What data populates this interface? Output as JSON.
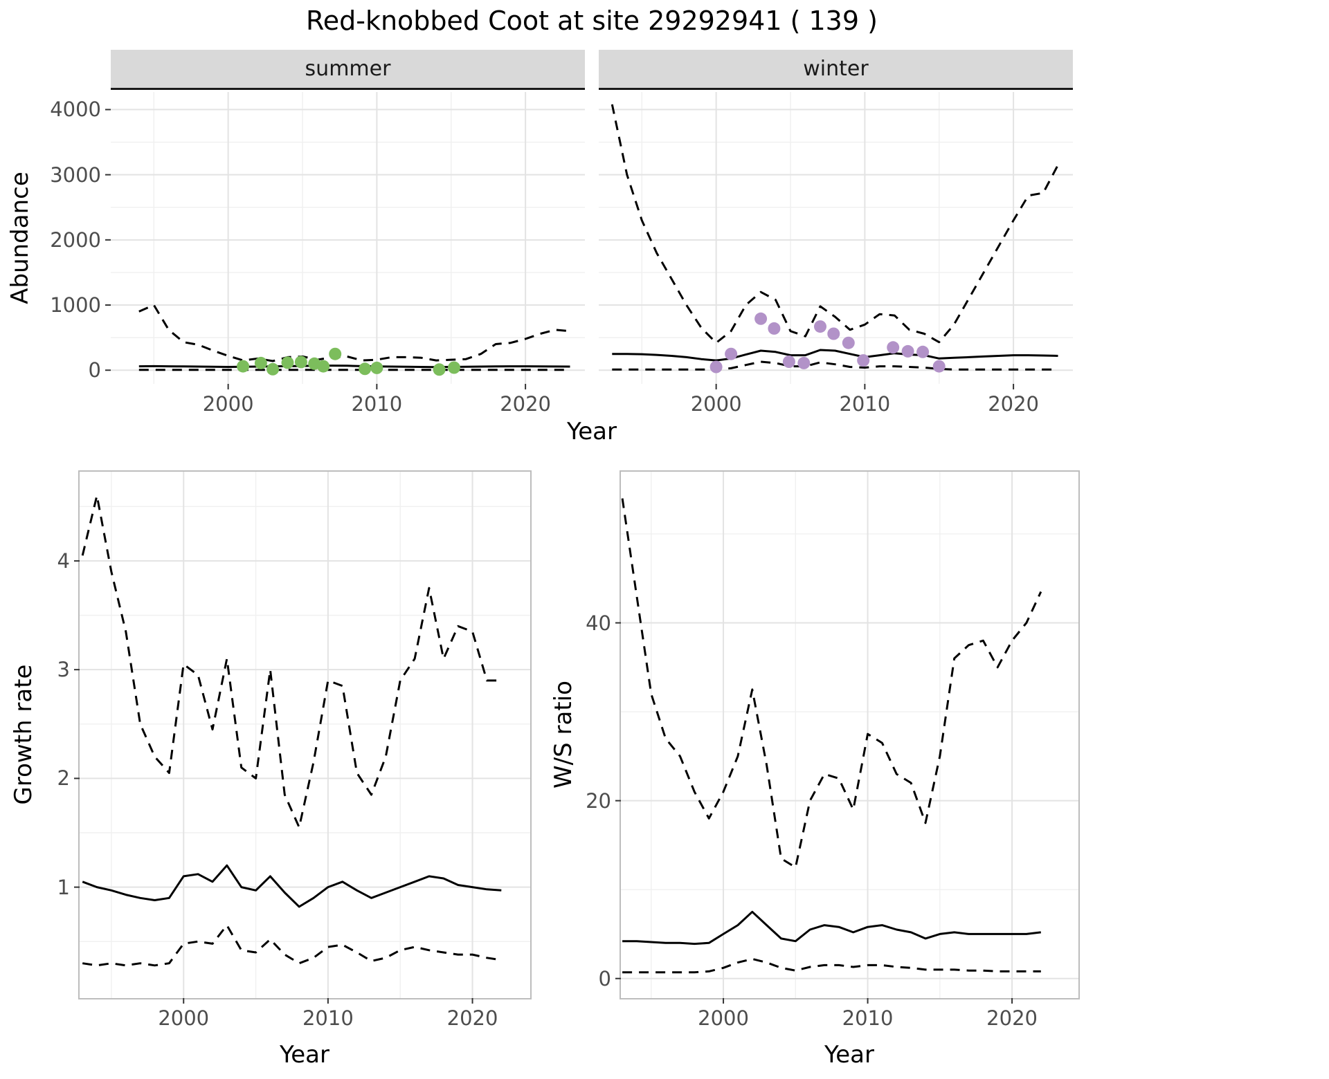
{
  "title": "Red-knobbed Coot at site 29292941 ( 139 )",
  "style": {
    "grid_major": "#e3e3e3",
    "grid_minor": "#f0f0f0",
    "line": "#000000",
    "tick": "#333333",
    "strip_bg": "#d9d9d9",
    "strip_border": "#1a1a1a",
    "panel_border": "#bdbdbd",
    "summer_point": "#7cbd5c",
    "winter_point": "#b292c8"
  },
  "chart_data": [
    {
      "id": "abundance-summer",
      "type": "line",
      "facet_label": "summer",
      "xlabel": "Year",
      "ylabel": "Abundance",
      "xlim": [
        1992.1,
        2024.0
      ],
      "ylim": [
        -210,
        4270
      ],
      "xticks": [
        2000,
        2010,
        2020
      ],
      "yticks": [
        0,
        1000,
        2000,
        3000,
        4000
      ],
      "xticks_minor": [
        1995,
        2005,
        2015
      ],
      "yticks_minor": [
        500,
        1500,
        2500,
        3500
      ],
      "series": [
        {
          "name": "upper-ci",
          "style": "dashed",
          "x": [
            1994,
            1995,
            1996,
            1997,
            1998,
            1999,
            2000,
            2001,
            2002,
            2003,
            2004,
            2005,
            2006,
            2007,
            2008,
            2009,
            2010,
            2011,
            2012,
            2013,
            2014,
            2015,
            2016,
            2017,
            2018,
            2019,
            2020,
            2021,
            2022,
            2023
          ],
          "y": [
            900,
            1000,
            620,
            430,
            390,
            300,
            220,
            150,
            180,
            140,
            200,
            210,
            160,
            200,
            210,
            150,
            160,
            200,
            200,
            190,
            150,
            160,
            170,
            250,
            400,
            420,
            480,
            560,
            620,
            600
          ]
        },
        {
          "name": "median",
          "style": "solid",
          "x": [
            1994,
            1995,
            1996,
            1997,
            1998,
            1999,
            2000,
            2001,
            2002,
            2003,
            2004,
            2005,
            2006,
            2007,
            2008,
            2009,
            2010,
            2011,
            2012,
            2013,
            2014,
            2015,
            2016,
            2017,
            2018,
            2019,
            2020,
            2021,
            2022,
            2023
          ],
          "y": [
            60,
            62,
            60,
            58,
            55,
            52,
            50,
            52,
            55,
            58,
            62,
            65,
            68,
            70,
            68,
            62,
            58,
            55,
            52,
            50,
            48,
            50,
            52,
            55,
            58,
            60,
            60,
            58,
            56,
            55
          ]
        },
        {
          "name": "lower-ci",
          "style": "dashed",
          "x": [
            1994,
            2023
          ],
          "y": [
            5,
            5
          ]
        }
      ],
      "points": {
        "name": "observed-counts",
        "color": "#7cbd5c",
        "x": [
          2001,
          2002.2,
          2003,
          2004,
          2004.9,
          2005.8,
          2006.4,
          2007.2,
          2009.2,
          2010,
          2014.2,
          2015.2
        ],
        "y": [
          60,
          110,
          15,
          115,
          125,
          100,
          60,
          250,
          20,
          35,
          10,
          40
        ]
      }
    },
    {
      "id": "abundance-winter",
      "type": "line",
      "facet_label": "winter",
      "xlabel": "Year",
      "ylabel": "Abundance",
      "xlim": [
        1992.1,
        2024.0
      ],
      "ylim": [
        -210,
        4270
      ],
      "xticks": [
        2000,
        2010,
        2020
      ],
      "yticks": [
        0,
        1000,
        2000,
        3000,
        4000
      ],
      "xticks_minor": [
        1995,
        2005,
        2015
      ],
      "yticks_minor": [
        500,
        1500,
        2500,
        3500
      ],
      "series": [
        {
          "name": "upper-ci",
          "style": "dashed",
          "x": [
            1993,
            1994,
            1995,
            1996,
            1997,
            1998,
            1999,
            2000,
            2001,
            2002,
            2003,
            2004,
            2005,
            2006,
            2007,
            2008,
            2009,
            2010,
            2011,
            2012,
            2013,
            2014,
            2015,
            2016,
            2017,
            2018,
            2019,
            2020,
            2021,
            2022,
            2023
          ],
          "y": [
            4080,
            3000,
            2300,
            1800,
            1400,
            1000,
            650,
            420,
            600,
            1000,
            1200,
            1080,
            600,
            520,
            980,
            820,
            620,
            700,
            860,
            840,
            620,
            560,
            430,
            700,
            1100,
            1500,
            1900,
            2300,
            2680,
            2720,
            3150
          ]
        },
        {
          "name": "median",
          "style": "solid",
          "x": [
            1993,
            1994,
            1995,
            1996,
            1997,
            1998,
            1999,
            2000,
            2001,
            2002,
            2003,
            2004,
            2005,
            2006,
            2007,
            2008,
            2009,
            2010,
            2011,
            2012,
            2013,
            2014,
            2015,
            2016,
            2017,
            2018,
            2019,
            2020,
            2021,
            2022,
            2023
          ],
          "y": [
            250,
            250,
            245,
            235,
            220,
            200,
            170,
            150,
            180,
            240,
            300,
            280,
            230,
            230,
            310,
            300,
            250,
            200,
            230,
            260,
            240,
            230,
            180,
            190,
            200,
            210,
            220,
            230,
            230,
            225,
            220
          ]
        },
        {
          "name": "lower-ci",
          "style": "dashed",
          "x": [
            1993,
            1994,
            1995,
            1996,
            1997,
            1998,
            1999,
            2000,
            2001,
            2002,
            2003,
            2004,
            2005,
            2006,
            2007,
            2008,
            2009,
            2010,
            2011,
            2012,
            2013,
            2014,
            2015,
            2016,
            2017,
            2018,
            2019,
            2020,
            2021,
            2022,
            2023
          ],
          "y": [
            10,
            10,
            10,
            10,
            10,
            10,
            10,
            10,
            30,
            80,
            130,
            110,
            60,
            60,
            120,
            90,
            50,
            40,
            60,
            60,
            50,
            40,
            20,
            10,
            10,
            10,
            10,
            10,
            10,
            10,
            10
          ]
        }
      ],
      "points": {
        "name": "observed-counts",
        "color": "#b292c8",
        "x": [
          2000,
          2001,
          2003,
          2003.9,
          2004.9,
          2005.9,
          2007,
          2007.9,
          2008.9,
          2009.9,
          2011.9,
          2012.9,
          2013.9,
          2015
        ],
        "y": [
          50,
          250,
          790,
          640,
          130,
          110,
          670,
          560,
          420,
          150,
          350,
          290,
          280,
          60
        ]
      }
    },
    {
      "id": "growth-rate",
      "type": "line",
      "xlabel": "Year",
      "ylabel": "Growth rate",
      "xlim": [
        1992.8,
        2024.0
      ],
      "ylim": [
        -0.02,
        4.82
      ],
      "xticks": [
        2000,
        2010,
        2020
      ],
      "yticks": [
        1,
        2,
        3,
        4
      ],
      "xticks_minor": [
        1995,
        2005,
        2015
      ],
      "yticks_minor": [
        0.5,
        1.5,
        2.5,
        3.5,
        4.5
      ],
      "series": [
        {
          "name": "upper-ci",
          "style": "dashed",
          "x": [
            1993,
            1994,
            1995,
            1996,
            1997,
            1998,
            1999,
            2000,
            2001,
            2002,
            2003,
            2004,
            2005,
            2006,
            2007,
            2008,
            2009,
            2010,
            2011,
            2012,
            2013,
            2014,
            2015,
            2016,
            2017,
            2018,
            2019,
            2020,
            2021,
            2022
          ],
          "y": [
            4.05,
            4.6,
            3.9,
            3.35,
            2.5,
            2.2,
            2.05,
            3.05,
            2.95,
            2.45,
            3.1,
            2.1,
            2.0,
            3.0,
            1.85,
            1.55,
            2.15,
            2.9,
            2.85,
            2.05,
            1.85,
            2.2,
            2.9,
            3.1,
            3.75,
            3.1,
            3.4,
            3.35,
            2.9,
            2.9
          ]
        },
        {
          "name": "median",
          "style": "solid",
          "x": [
            1993,
            1994,
            1995,
            1996,
            1997,
            1998,
            1999,
            2000,
            2001,
            2002,
            2003,
            2004,
            2005,
            2006,
            2007,
            2008,
            2009,
            2010,
            2011,
            2012,
            2013,
            2014,
            2015,
            2016,
            2017,
            2018,
            2019,
            2020,
            2021,
            2022
          ],
          "y": [
            1.05,
            1.0,
            0.97,
            0.93,
            0.9,
            0.88,
            0.9,
            1.1,
            1.12,
            1.05,
            1.2,
            1.0,
            0.97,
            1.1,
            0.95,
            0.82,
            0.9,
            1.0,
            1.05,
            0.97,
            0.9,
            0.95,
            1.0,
            1.05,
            1.1,
            1.08,
            1.02,
            1.0,
            0.98,
            0.97
          ]
        },
        {
          "name": "lower-ci",
          "style": "dashed",
          "x": [
            1993,
            1994,
            1995,
            1996,
            1997,
            1998,
            1999,
            2000,
            2001,
            2002,
            2003,
            2004,
            2005,
            2006,
            2007,
            2008,
            2009,
            2010,
            2011,
            2012,
            2013,
            2014,
            2015,
            2016,
            2017,
            2018,
            2019,
            2020,
            2021,
            2022
          ],
          "y": [
            0.3,
            0.28,
            0.3,
            0.28,
            0.3,
            0.28,
            0.3,
            0.48,
            0.5,
            0.48,
            0.65,
            0.42,
            0.4,
            0.52,
            0.38,
            0.3,
            0.35,
            0.45,
            0.47,
            0.4,
            0.32,
            0.35,
            0.42,
            0.45,
            0.42,
            0.4,
            0.38,
            0.38,
            0.35,
            0.33
          ]
        }
      ]
    },
    {
      "id": "ws-ratio",
      "type": "line",
      "xlabel": "Year",
      "ylabel": "W/S ratio",
      "xlim": [
        1992.9,
        2024.6
      ],
      "ylim": [
        -2.2,
        57
      ],
      "xticks": [
        2000,
        2010,
        2020
      ],
      "yticks": [
        0,
        20,
        40
      ],
      "xticks_minor": [
        1995,
        2005,
        2015
      ],
      "yticks_minor": [
        10,
        30,
        50
      ],
      "series": [
        {
          "name": "upper-ci",
          "style": "dashed",
          "x": [
            1993,
            1994,
            1995,
            1996,
            1997,
            1998,
            1999,
            2000,
            2001,
            2002,
            2003,
            2004,
            2005,
            2006,
            2007,
            2008,
            2009,
            2010,
            2011,
            2012,
            2013,
            2014,
            2015,
            2016,
            2017,
            2018,
            2019,
            2020,
            2021,
            2022
          ],
          "y": [
            54,
            43,
            32,
            27,
            25,
            21,
            18,
            21,
            25,
            32.5,
            24,
            13.5,
            12.5,
            20,
            23,
            22.5,
            19,
            27.5,
            26.5,
            23,
            22,
            17.5,
            25,
            36,
            37.5,
            38,
            35,
            38,
            40,
            43.5
          ]
        },
        {
          "name": "median",
          "style": "solid",
          "x": [
            1993,
            1994,
            1995,
            1996,
            1997,
            1998,
            1999,
            2000,
            2001,
            2002,
            2003,
            2004,
            2005,
            2006,
            2007,
            2008,
            2009,
            2010,
            2011,
            2012,
            2013,
            2014,
            2015,
            2016,
            2017,
            2018,
            2019,
            2020,
            2021,
            2022
          ],
          "y": [
            4.2,
            4.2,
            4.1,
            4.0,
            4.0,
            3.9,
            4.0,
            5.0,
            6.0,
            7.5,
            6.0,
            4.5,
            4.2,
            5.5,
            6.0,
            5.8,
            5.2,
            5.8,
            6.0,
            5.5,
            5.2,
            4.5,
            5.0,
            5.2,
            5.0,
            5.0,
            5.0,
            5.0,
            5.0,
            5.2
          ]
        },
        {
          "name": "lower-ci",
          "style": "dashed",
          "x": [
            1993,
            1994,
            1995,
            1996,
            1997,
            1998,
            1999,
            2000,
            2001,
            2002,
            2003,
            2004,
            2005,
            2006,
            2007,
            2008,
            2009,
            2010,
            2011,
            2012,
            2013,
            2014,
            2015,
            2016,
            2017,
            2018,
            2019,
            2020,
            2021,
            2022
          ],
          "y": [
            0.7,
            0.7,
            0.7,
            0.7,
            0.7,
            0.7,
            0.8,
            1.2,
            1.8,
            2.2,
            1.8,
            1.2,
            0.9,
            1.3,
            1.5,
            1.5,
            1.3,
            1.5,
            1.5,
            1.3,
            1.2,
            1.0,
            1.0,
            1.0,
            0.9,
            0.9,
            0.8,
            0.8,
            0.8,
            0.8
          ]
        }
      ]
    }
  ]
}
